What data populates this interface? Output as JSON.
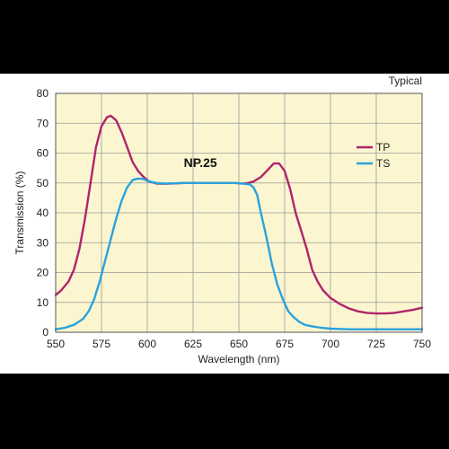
{
  "chart_data": {
    "type": "line",
    "title": "",
    "corner_note": "Typical",
    "annotation": "NP.25",
    "xlabel": "Wavelength (nm)",
    "ylabel": "Transmission (%)",
    "xlim": [
      550,
      750
    ],
    "ylim": [
      0,
      80
    ],
    "x_ticks": [
      "550",
      "575",
      "600",
      "625",
      "650",
      "675",
      "700",
      "725",
      "750"
    ],
    "y_ticks": [
      "0",
      "10",
      "20",
      "30",
      "40",
      "50",
      "60",
      "70",
      "80"
    ],
    "grid": true,
    "legend_position": "right",
    "background_color": "#fbf6cf",
    "series": [
      {
        "name": "TP",
        "color": "#b0246e",
        "points": [
          [
            550,
            12.5
          ],
          [
            553,
            14
          ],
          [
            557,
            17
          ],
          [
            560,
            21
          ],
          [
            563,
            28
          ],
          [
            566,
            38
          ],
          [
            569,
            50
          ],
          [
            572,
            62
          ],
          [
            575,
            69
          ],
          [
            578,
            72
          ],
          [
            580,
            72.5
          ],
          [
            583,
            71
          ],
          [
            586,
            67
          ],
          [
            589,
            62
          ],
          [
            592,
            57
          ],
          [
            595,
            54
          ],
          [
            598,
            52
          ],
          [
            601,
            50.5
          ],
          [
            605,
            49.8
          ],
          [
            610,
            49.7
          ],
          [
            620,
            50
          ],
          [
            630,
            50
          ],
          [
            640,
            50
          ],
          [
            648,
            50
          ],
          [
            652,
            49.8
          ],
          [
            655,
            50
          ],
          [
            658,
            50.5
          ],
          [
            662,
            52
          ],
          [
            666,
            54.5
          ],
          [
            669,
            56.5
          ],
          [
            672,
            56.5
          ],
          [
            675,
            54
          ],
          [
            678,
            48
          ],
          [
            681,
            40
          ],
          [
            684,
            34
          ],
          [
            687,
            28
          ],
          [
            690,
            21
          ],
          [
            693,
            17
          ],
          [
            696,
            14
          ],
          [
            700,
            11.5
          ],
          [
            705,
            9.5
          ],
          [
            710,
            8
          ],
          [
            715,
            7
          ],
          [
            720,
            6.5
          ],
          [
            725,
            6.3
          ],
          [
            730,
            6.3
          ],
          [
            735,
            6.5
          ],
          [
            740,
            7
          ],
          [
            745,
            7.5
          ],
          [
            750,
            8.2
          ]
        ]
      },
      {
        "name": "TS",
        "color": "#2aa3de",
        "points": [
          [
            550,
            1
          ],
          [
            555,
            1.5
          ],
          [
            560,
            2.5
          ],
          [
            565,
            4.5
          ],
          [
            568,
            7
          ],
          [
            571,
            11
          ],
          [
            574,
            17
          ],
          [
            577,
            24
          ],
          [
            580,
            31
          ],
          [
            583,
            38
          ],
          [
            586,
            44
          ],
          [
            589,
            48.5
          ],
          [
            592,
            51
          ],
          [
            595,
            51.5
          ],
          [
            598,
            51.3
          ],
          [
            601,
            50.5
          ],
          [
            605,
            50
          ],
          [
            610,
            49.8
          ],
          [
            620,
            50
          ],
          [
            630,
            50
          ],
          [
            640,
            50
          ],
          [
            648,
            50
          ],
          [
            652,
            49.8
          ],
          [
            656,
            49.5
          ],
          [
            658,
            48.5
          ],
          [
            660,
            46
          ],
          [
            662,
            40
          ],
          [
            665,
            32
          ],
          [
            668,
            23
          ],
          [
            671,
            16
          ],
          [
            674,
            11
          ],
          [
            677,
            7
          ],
          [
            680,
            5
          ],
          [
            683,
            3.5
          ],
          [
            686,
            2.5
          ],
          [
            690,
            2
          ],
          [
            695,
            1.5
          ],
          [
            700,
            1.2
          ],
          [
            710,
            1
          ],
          [
            720,
            1
          ],
          [
            730,
            1
          ],
          [
            740,
            1
          ],
          [
            750,
            1
          ]
        ]
      }
    ]
  }
}
